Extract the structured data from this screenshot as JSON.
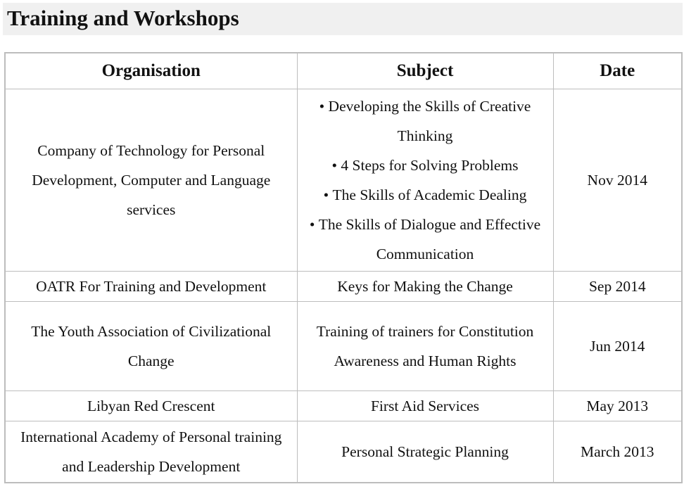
{
  "section": {
    "title": "Training and Workshops"
  },
  "table": {
    "headers": {
      "organisation": "Organisation",
      "subject": "Subject",
      "date": "Date"
    },
    "rows": [
      {
        "organisation": "Company of Technology for Personal Development, Computer and Language services",
        "subjects": [
          "Developing the Skills of Creative Thinking",
          "4 Steps for Solving Problems",
          "The Skills of Academic Dealing",
          "The Skills of Dialogue and Effective Communication"
        ],
        "date": "Nov 2014"
      },
      {
        "organisation": "OATR For Training and Development",
        "subject": "Keys for Making the Change",
        "date": "Sep 2014"
      },
      {
        "organisation": "The Youth Association of Civilizational Change",
        "subject": "Training of trainers for Constitution Awareness and Human Rights",
        "date": "Jun 2014"
      },
      {
        "organisation": "Libyan Red Crescent",
        "subject": "First Aid Services",
        "date": "May 2013"
      },
      {
        "organisation": "International Academy of Personal training and Leadership Development",
        "subject": "Personal Strategic Planning",
        "date": "March 2013"
      }
    ]
  }
}
